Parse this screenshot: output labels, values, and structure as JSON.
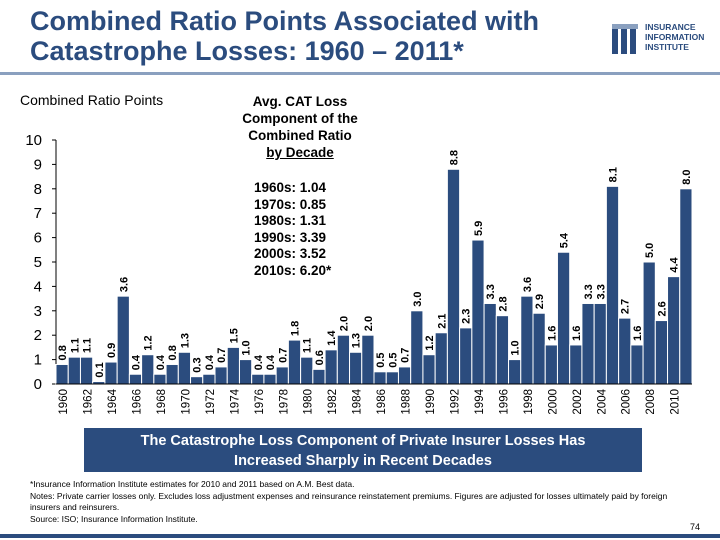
{
  "header": {
    "title_line1": "Combined Ratio Points Associated with",
    "title_line2": "Catastrophe Losses: 1960 – 2011*",
    "logo_line1": "INSURANCE",
    "logo_line2": "INFORMATION",
    "logo_line3": "INSTITUTE"
  },
  "annotation": {
    "avg_line1": "Avg. CAT Loss",
    "avg_line2": "Component of the",
    "avg_line3": "Combined Ratio",
    "avg_line4": "by Decade",
    "decades": [
      "1960s: 1.04",
      "1970s: 0.85",
      "1980s: 1.31",
      "1990s: 3.39",
      "2000s: 3.52",
      "2010s: 6.20*"
    ]
  },
  "chart_data": {
    "type": "bar",
    "ylabel": "Combined Ratio Points",
    "ylim": [
      0,
      10
    ],
    "yticks": [
      0,
      1,
      2,
      3,
      4,
      5,
      6,
      7,
      8,
      9,
      10
    ],
    "grid": false,
    "categories": [
      "1960",
      "1961",
      "1962",
      "1963",
      "1964",
      "1965",
      "1966",
      "1967",
      "1968",
      "1969",
      "1970",
      "1971",
      "1972",
      "1973",
      "1974",
      "1975",
      "1976",
      "1977",
      "1978",
      "1979",
      "1980",
      "1981",
      "1982",
      "1983",
      "1984",
      "1985",
      "1986",
      "1987",
      "1988",
      "1989",
      "1990",
      "1991",
      "1992",
      "1993",
      "1994",
      "1995",
      "1996",
      "1997",
      "1998",
      "1999",
      "2000",
      "2001",
      "2002",
      "2003",
      "2004",
      "2005",
      "2006",
      "2007",
      "2008",
      "2009",
      "2010",
      "2011"
    ],
    "values": [
      0.8,
      1.1,
      1.1,
      0.1,
      0.9,
      3.6,
      0.4,
      1.2,
      0.4,
      0.8,
      1.3,
      0.3,
      0.4,
      0.7,
      1.5,
      1.0,
      0.4,
      0.4,
      0.7,
      1.8,
      1.1,
      0.6,
      1.4,
      2.0,
      1.3,
      2.0,
      0.5,
      0.5,
      0.7,
      3.0,
      1.2,
      2.1,
      8.8,
      2.3,
      5.9,
      3.3,
      2.8,
      1.0,
      3.6,
      2.9,
      1.6,
      5.4,
      1.6,
      3.3,
      3.3,
      8.1,
      2.7,
      1.6,
      5.0,
      2.6,
      4.4,
      8.0
    ],
    "value_labels": [
      "0.8",
      "1.1",
      "1.1",
      "0.1",
      "0.9",
      "3.6",
      "0.4",
      "1.2",
      "0.4",
      "0.8",
      "1.3",
      "0.3",
      "0.4",
      "0.7",
      "1.5",
      "1.0",
      "0.4",
      "0.4",
      "0.7",
      "1.8",
      "1.1",
      "0.6",
      "1.4",
      "2.0",
      "1.3",
      "2.0",
      "0.5",
      "0.5",
      "0.7",
      "3.0",
      "1.2",
      "2.1",
      "8.8",
      "2.3",
      "5.9",
      "3.3",
      "2.8",
      "1.0",
      "3.6",
      "2.9",
      "1.6",
      "5.4",
      "1.6",
      "3.3",
      "3.3",
      "8.1",
      "2.7",
      "1.6",
      "5.0",
      "2.6",
      "4.4",
      "8.0"
    ],
    "xtick_labels": [
      "1960",
      "1962",
      "1964",
      "1966",
      "1968",
      "1970",
      "1972",
      "1974",
      "1976",
      "1978",
      "1980",
      "1982",
      "1984",
      "1986",
      "1988",
      "1990",
      "1992",
      "1994",
      "1996",
      "1998",
      "2000",
      "2002",
      "2004",
      "2006",
      "2008",
      "2010"
    ],
    "bar_color": "#2b4c7e",
    "bar_edge_color": "#ffffff"
  },
  "banner": {
    "line1": "The Catastrophe Loss Component of Private Insurer Losses Has",
    "line2": "Increased Sharply in Recent Decades"
  },
  "footnotes": {
    "note1": "*Insurance Information Institute estimates for 2010 and 2011 based on A.M. Best data.",
    "note2": "Notes: Private carrier losses only.  Excludes loss adjustment expenses and reinsurance reinstatement premiums. Figures are adjusted for losses ultimately paid by foreign insurers and reinsurers.",
    "note3": "Source: ISO; Insurance Information Institute."
  },
  "page_number": "74"
}
